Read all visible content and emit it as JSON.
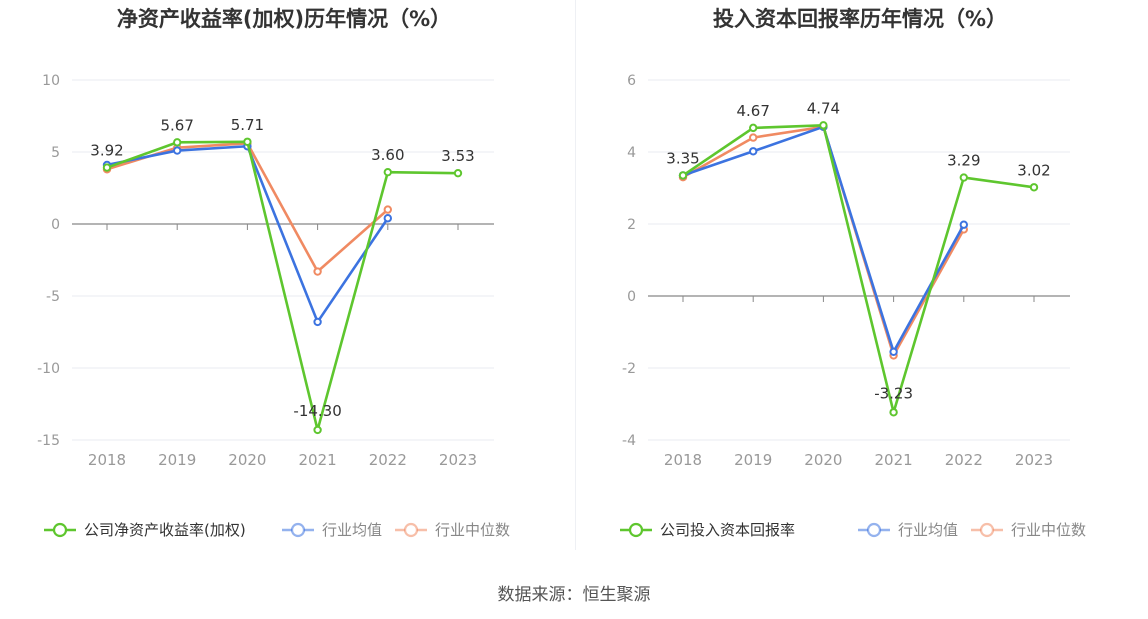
{
  "source_text": "数据来源：恒生聚源",
  "colors": {
    "company": "#5ec62e",
    "average": "#3c73e0",
    "median": "#f08a62",
    "axis": "#888888",
    "grid": "#e8ebf2",
    "label": "#333333",
    "tick": "#999999"
  },
  "chart_data": [
    {
      "type": "line",
      "title": "净资产收益率(加权)历年情况（%）",
      "categories": [
        "2018",
        "2019",
        "2020",
        "2021",
        "2022",
        "2023"
      ],
      "ylim": [
        -15,
        10
      ],
      "yticks": [
        10,
        5,
        0,
        -5,
        -10,
        -15
      ],
      "grid": true,
      "legend_position": "bottom",
      "series": [
        {
          "name": "公司净资产收益率(加权)",
          "key": "company",
          "values": [
            3.92,
            5.67,
            5.71,
            -14.3,
            3.6,
            3.53
          ],
          "labels": [
            "3.92",
            "5.67",
            "5.71",
            "-14.30",
            "3.60",
            "3.53"
          ]
        },
        {
          "name": "行业均值",
          "key": "average",
          "values": [
            4.1,
            5.1,
            5.4,
            -6.8,
            0.4,
            null
          ]
        },
        {
          "name": "行业中位数",
          "key": "median",
          "values": [
            3.8,
            5.3,
            5.6,
            -3.3,
            1.0,
            null
          ]
        }
      ]
    },
    {
      "type": "line",
      "title": "投入资本回报率历年情况（%）",
      "categories": [
        "2018",
        "2019",
        "2020",
        "2021",
        "2022",
        "2023"
      ],
      "ylim": [
        -4,
        6
      ],
      "yticks": [
        6,
        4,
        2,
        0,
        -2,
        -4
      ],
      "grid": true,
      "legend_position": "bottom",
      "series": [
        {
          "name": "公司投入资本回报率",
          "key": "company",
          "values": [
            3.35,
            4.67,
            4.74,
            -3.23,
            3.29,
            3.02
          ],
          "labels": [
            "3.35",
            "4.67",
            "4.74",
            "-3.23",
            "3.29",
            "3.02"
          ]
        },
        {
          "name": "行业均值",
          "key": "average",
          "values": [
            3.35,
            4.02,
            4.7,
            -1.55,
            1.98,
            null
          ]
        },
        {
          "name": "行业中位数",
          "key": "median",
          "values": [
            3.3,
            4.4,
            4.7,
            -1.65,
            1.85,
            null
          ]
        }
      ]
    }
  ]
}
